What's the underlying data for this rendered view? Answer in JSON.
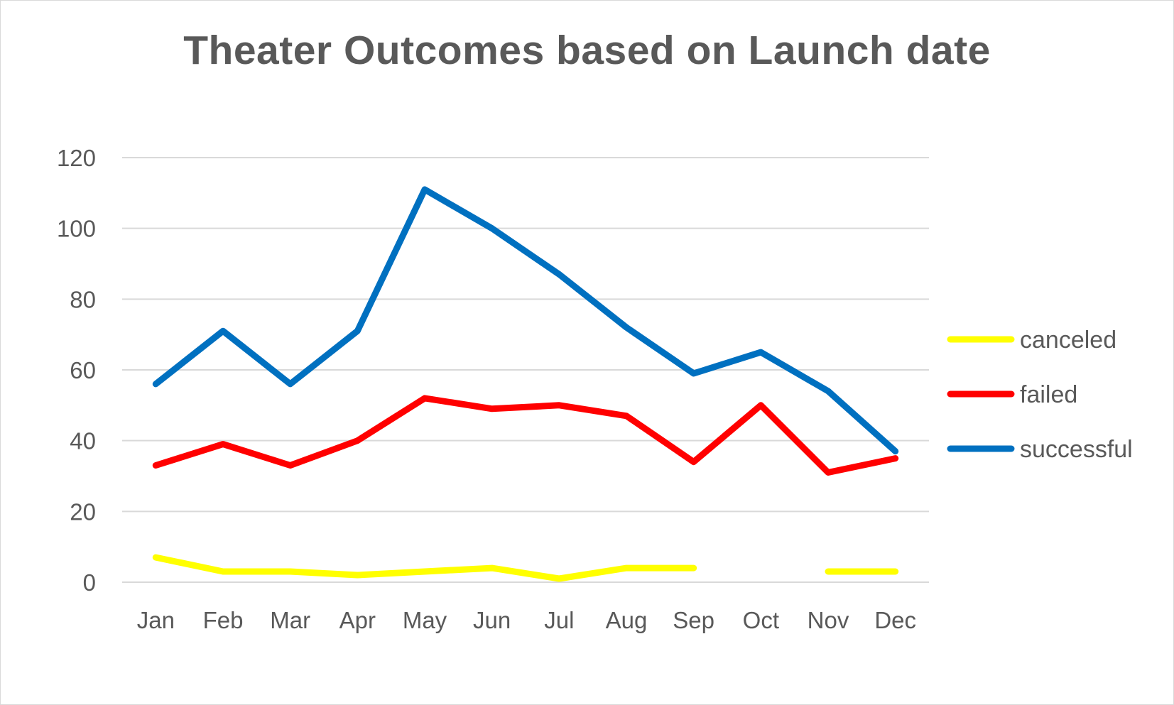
{
  "chart_data": {
    "type": "line",
    "title": "Theater Outcomes based on Launch date",
    "xlabel": "",
    "ylabel": "",
    "categories": [
      "Jan",
      "Feb",
      "Mar",
      "Apr",
      "May",
      "Jun",
      "Jul",
      "Aug",
      "Sep",
      "Oct",
      "Nov",
      "Dec"
    ],
    "yticks": [
      "0",
      "20",
      "40",
      "60",
      "80",
      "100",
      "120"
    ],
    "ylim": [
      0,
      120
    ],
    "grid": true,
    "legend_position": "right",
    "series": [
      {
        "name": "canceled",
        "color": "#FFFF00",
        "values": [
          7,
          3,
          3,
          2,
          3,
          4,
          1,
          4,
          4,
          null,
          3,
          3
        ]
      },
      {
        "name": "failed",
        "color": "#FF0000",
        "values": [
          33,
          39,
          33,
          40,
          52,
          49,
          50,
          47,
          34,
          50,
          31,
          35
        ]
      },
      {
        "name": "successful",
        "color": "#0070C0",
        "values": [
          56,
          71,
          56,
          71,
          111,
          100,
          87,
          72,
          59,
          65,
          54,
          37
        ]
      }
    ]
  }
}
